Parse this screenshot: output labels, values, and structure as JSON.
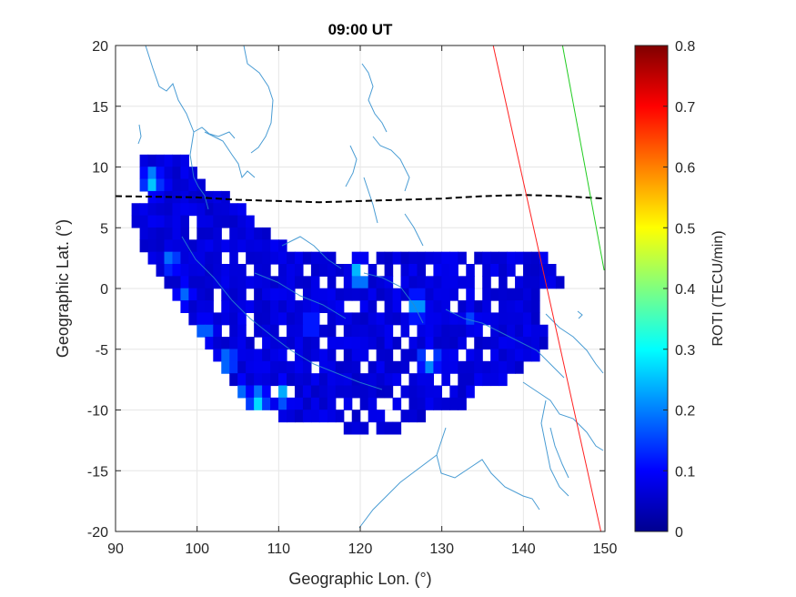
{
  "chart_data": {
    "type": "heatmap",
    "title": "09:00 UT",
    "xlabel": "Geographic Lon. (°)",
    "ylabel": "Geographic Lat. (°)",
    "xlim": [
      90,
      150
    ],
    "ylim": [
      -20,
      20
    ],
    "xticks": [
      "90",
      "100",
      "110",
      "120",
      "130",
      "140",
      "150"
    ],
    "yticks": [
      "20",
      "15",
      "10",
      "5",
      "0",
      "-5",
      "-10",
      "-15",
      "-20"
    ],
    "grid": true,
    "colorbar": {
      "label": "ROTI (TECU/min)",
      "range": [
        0,
        0.8
      ],
      "ticks": [
        "0",
        "0.1",
        "0.2",
        "0.3",
        "0.4",
        "0.5",
        "0.6",
        "0.7",
        "0.8"
      ],
      "colormap": "jet"
    },
    "background_roti": 0.07,
    "roti_coverage": [
      {
        "lat": 10,
        "lon": [
          93,
          98
        ]
      },
      {
        "lat": 9,
        "lon": [
          93,
          99
        ]
      },
      {
        "lat": 8,
        "lon": [
          93,
          100
        ]
      },
      {
        "lat": 7,
        "lon": [
          94,
          103
        ]
      },
      {
        "lat": 6,
        "lon": [
          92,
          105
        ]
      },
      {
        "lat": 5,
        "lon": [
          92,
          106
        ]
      },
      {
        "lat": 4,
        "lon": [
          93,
          108
        ]
      },
      {
        "lat": 3,
        "lon": [
          93,
          110
        ]
      },
      {
        "lat": 2,
        "lon": [
          94,
          142
        ]
      },
      {
        "lat": 1,
        "lon": [
          95,
          143
        ]
      },
      {
        "lat": 0,
        "lon": [
          96,
          144
        ]
      },
      {
        "lat": -1,
        "lon": [
          97,
          141
        ]
      },
      {
        "lat": -2,
        "lon": [
          98,
          141
        ]
      },
      {
        "lat": -3,
        "lon": [
          99,
          141
        ]
      },
      {
        "lat": -4,
        "lon": [
          100,
          142
        ]
      },
      {
        "lat": -5,
        "lon": [
          101,
          142
        ]
      },
      {
        "lat": -6,
        "lon": [
          102,
          141
        ]
      },
      {
        "lat": -7,
        "lon": [
          103,
          139
        ]
      },
      {
        "lat": -8,
        "lon": [
          104,
          137
        ]
      },
      {
        "lat": -9,
        "lon": [
          105,
          133
        ]
      },
      {
        "lat": -10,
        "lon": [
          106,
          132
        ]
      },
      {
        "lat": -11,
        "lon": [
          110,
          127
        ]
      },
      {
        "lat": -12,
        "lon": [
          118,
          124
        ]
      }
    ],
    "roti_hotspots": [
      {
        "lon": 94.5,
        "lat": 8.8,
        "roti": 0.27
      },
      {
        "lon": 96.8,
        "lat": 2.3,
        "roti": 0.2
      },
      {
        "lon": 98.5,
        "lat": -0.5,
        "roti": 0.18
      },
      {
        "lon": 101,
        "lat": -3.5,
        "roti": 0.2
      },
      {
        "lon": 103.8,
        "lat": -6,
        "roti": 0.22
      },
      {
        "lon": 102.3,
        "lat": -6.7,
        "roti": 0.2
      },
      {
        "lon": 107.5,
        "lat": -9.3,
        "roti": 0.28
      },
      {
        "lon": 110.5,
        "lat": -8.7,
        "roti": 0.24
      },
      {
        "lon": 105.5,
        "lat": -8.5,
        "roti": 0.18
      },
      {
        "lon": 120,
        "lat": 1.2,
        "roti": 0.3
      },
      {
        "lon": 127,
        "lat": -1.5,
        "roti": 0.25
      },
      {
        "lon": 128.5,
        "lat": -5.8,
        "roti": 0.28
      },
      {
        "lon": 114,
        "lat": -3,
        "roti": 0.16
      },
      {
        "lon": 133.5,
        "lat": -2.5,
        "roti": 0.15
      }
    ],
    "magnetic_equator": {
      "style": "black dashed",
      "lon": [
        90,
        100,
        105,
        110,
        115,
        120,
        125,
        130,
        135,
        140,
        145,
        150
      ],
      "lat": [
        7.6,
        7.5,
        7.3,
        7.2,
        7.1,
        7.2,
        7.3,
        7.4,
        7.6,
        7.7,
        7.6,
        7.4
      ]
    },
    "red_line": {
      "lon": [
        136.3,
        149.5
      ],
      "lat": [
        20,
        -20
      ]
    },
    "green_line": {
      "lon": [
        144.8,
        149.9
      ],
      "lat": [
        20,
        1.5
      ]
    }
  }
}
